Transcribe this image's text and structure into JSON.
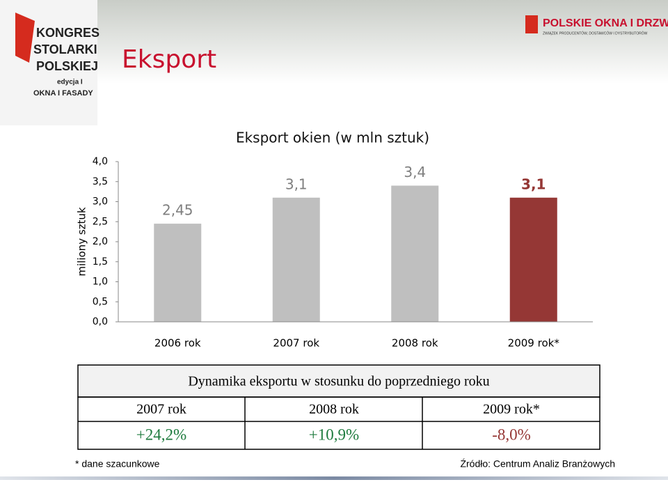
{
  "header": {
    "title": "Eksport",
    "logo_left": [
      "Kongres",
      "Stolarki",
      "Polskiej",
      "edycja I",
      "OKNA I FASADY"
    ],
    "logo_right": "POLSKIE OKNA I DRZWI",
    "logo_right_sub": "ZWIĄZEK PRODUCENTÓW, DOSTAWCÓW I DYSTRYBUTORÓW"
  },
  "chart_data": {
    "type": "bar",
    "title": "Eksport okien (w mln sztuk)",
    "y_label": "miliony sztuk",
    "categories": [
      "2006 rok",
      "2007 rok",
      "2008 rok",
      "2009 rok*"
    ],
    "values": [
      2.45,
      3.1,
      3.4,
      3.1
    ],
    "value_labels": [
      "2,45",
      "3,1",
      "3,4",
      "3,1"
    ],
    "colors": [
      "#bfbfbf",
      "#bfbfbf",
      "#bfbfbf",
      "#953735"
    ],
    "label_colors": [
      "#7f7f7f",
      "#7f7f7f",
      "#7f7f7f",
      "#953735"
    ],
    "ylim": [
      0,
      4
    ],
    "yticks": [
      {
        "value": 0,
        "label": "0,0"
      },
      {
        "value": 0.5,
        "label": "0,5"
      },
      {
        "value": 1,
        "label": "1,0"
      },
      {
        "value": 1.5,
        "label": "1,5"
      },
      {
        "value": 2,
        "label": "2,0"
      },
      {
        "value": 2.5,
        "label": "2,5"
      },
      {
        "value": 3,
        "label": "3,0"
      },
      {
        "value": 3.5,
        "label": "3,5"
      },
      {
        "value": 4,
        "label": "4,0"
      }
    ],
    "grid": false
  },
  "table": {
    "title": "Dynamika eksportu w stosunku do poprzedniego roku",
    "header": [
      "2007 rok",
      "2008 rok",
      "2009 rok*"
    ],
    "rows": [
      [
        "+24,2%",
        "+10,9%",
        "-8,0%"
      ]
    ]
  },
  "footer": {
    "note": "* dane szacunkowe",
    "source": "Źródło: Centrum Analiz Branżowych"
  }
}
